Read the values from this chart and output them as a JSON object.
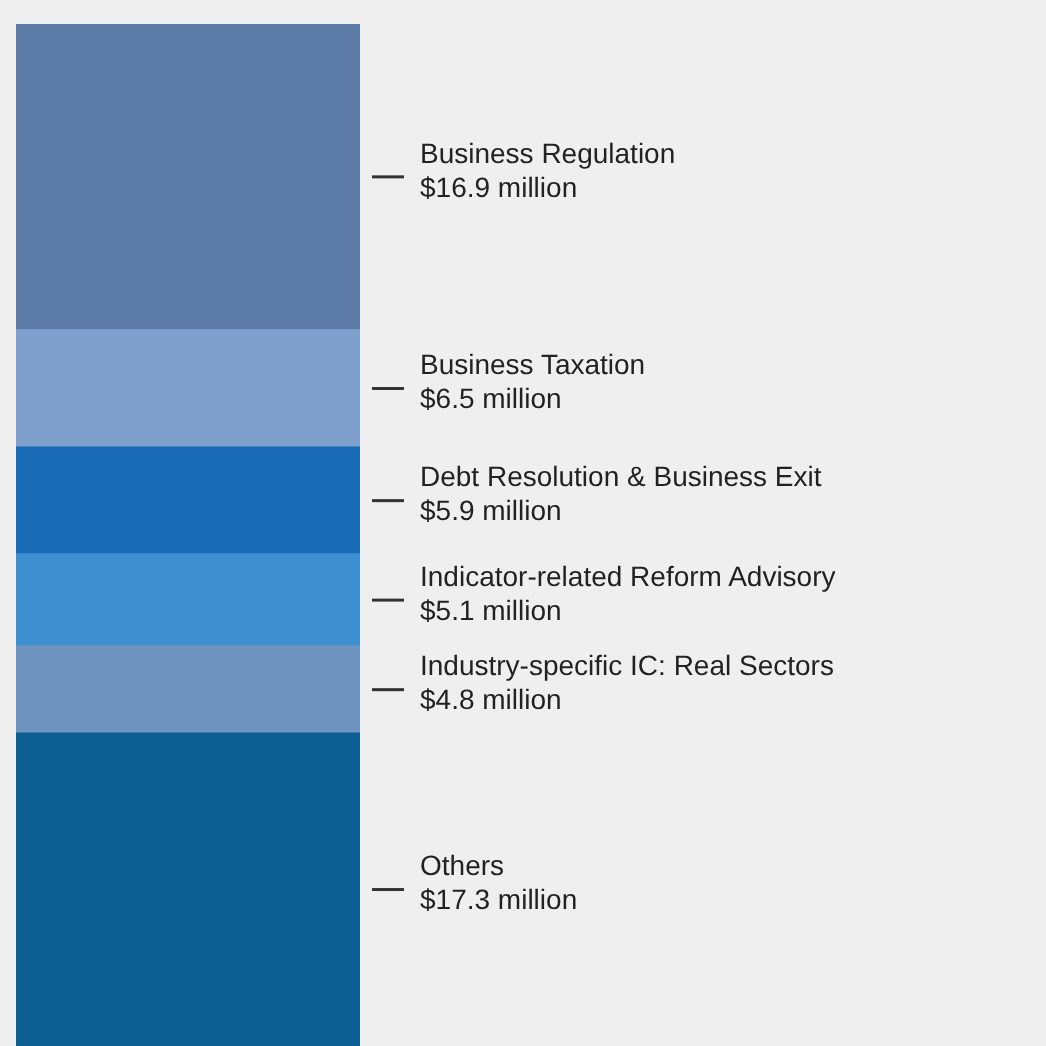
{
  "chart_data": {
    "type": "bar",
    "stacked": true,
    "categories": [
      null
    ],
    "series": [
      {
        "name": "Others",
        "color": "#0d5e92",
        "values": [
          17.3
        ],
        "value_labels": [
          "$17.3 million"
        ]
      },
      {
        "name": "Industry-specific IC: Real Sectors",
        "color": "#7094c0",
        "values": [
          4.8
        ],
        "value_labels": [
          "$4.8 million"
        ]
      },
      {
        "name": "Indicator-related Reform Advisory",
        "color": "#3d8fd0",
        "values": [
          5.1
        ],
        "value_labels": [
          "$5.1 million"
        ]
      },
      {
        "name": "Debt Resolution & Business Exit",
        "color": "#1a6bb5",
        "values": [
          5.9
        ],
        "value_labels": [
          "$5.9 million"
        ]
      },
      {
        "name": "Business Taxation",
        "color": "#7fa0cc",
        "values": [
          6.5
        ],
        "value_labels": [
          "$6.5 million"
        ]
      },
      {
        "name": "Business Regulation",
        "color": "#5b7aa6",
        "values": [
          16.9
        ],
        "value_labels": [
          "$16.9 million"
        ]
      }
    ]
  }
}
